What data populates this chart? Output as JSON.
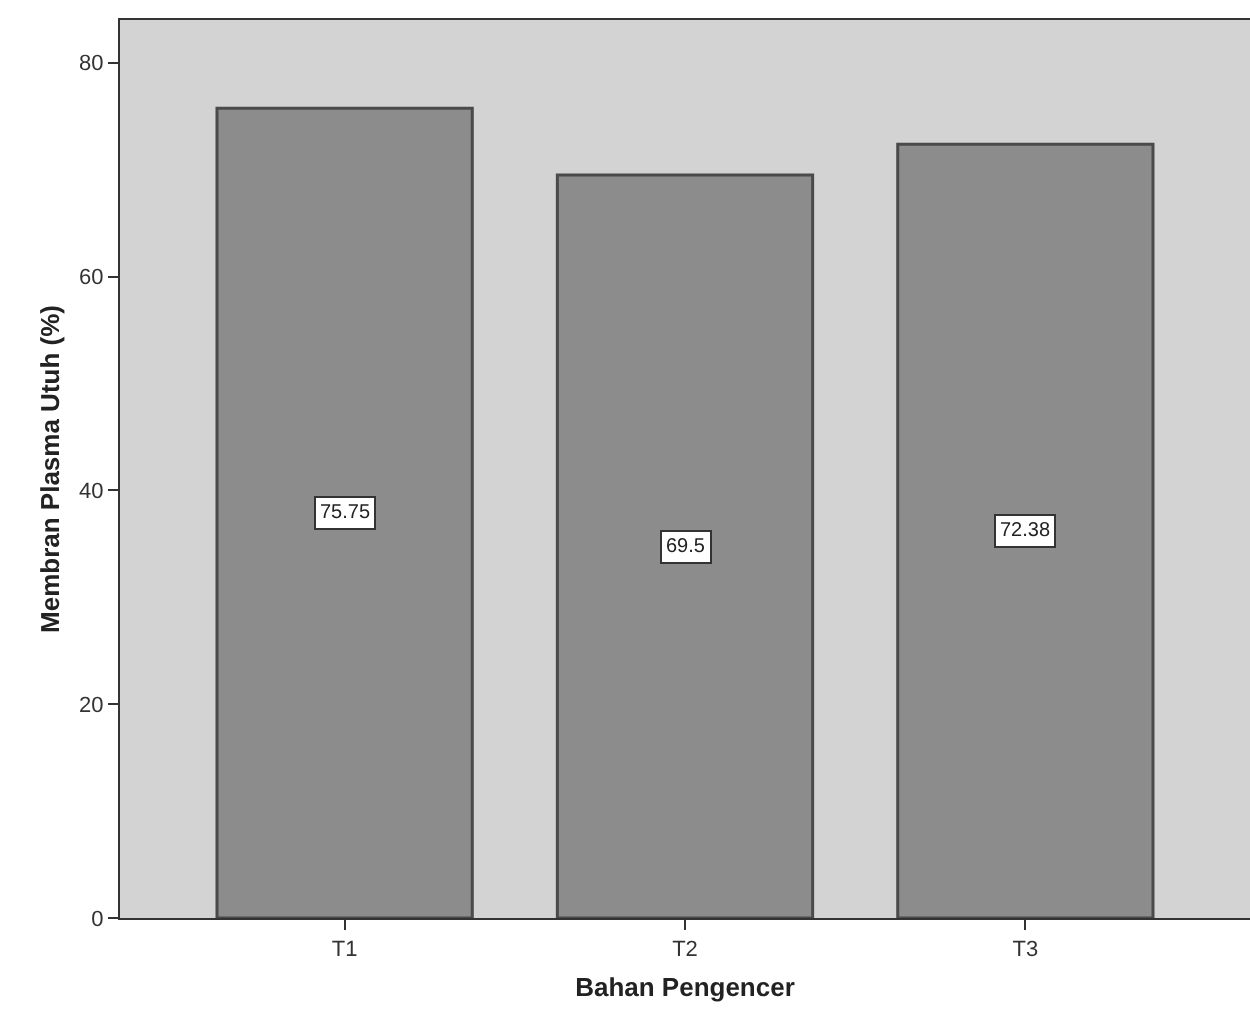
{
  "chart_data": {
    "type": "bar",
    "xlabel": "Bahan Pengencer",
    "ylabel": "Membran Plasma Utuh (%)",
    "categories": [
      "T1",
      "T2",
      "T3"
    ],
    "values": [
      75.75,
      69.5,
      72.38
    ],
    "color": "#8c8c8c",
    "ylim": [
      0,
      84
    ],
    "yticks": [
      0,
      20,
      40,
      60,
      80
    ],
    "data_labels": true,
    "grid": false,
    "legend": false
  }
}
